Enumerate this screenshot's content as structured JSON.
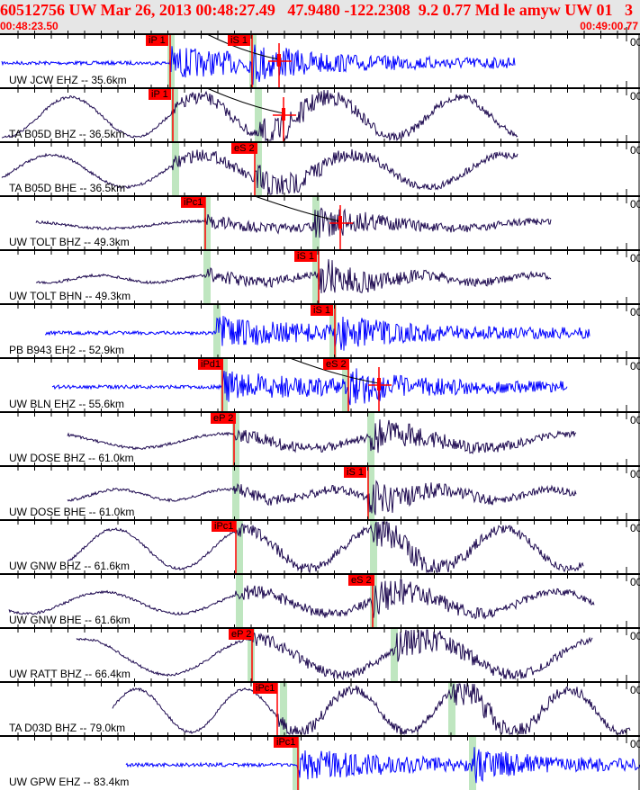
{
  "header": {
    "title": "60512756 UW Mar 26, 2013 00:48:27.49   47.9480 -122.2308  9.2 0.77 Md le amyw UW 01   3",
    "start_time": "00:48:23.50",
    "end_time": "00:49:00.77"
  },
  "scale_label": "00",
  "colors": {
    "header_bg": "#e6e6e6",
    "header_text": "#ff0000",
    "short_period": "#0000ff",
    "broadband": "#1e0a50",
    "pick": "#ff0000",
    "window": "#bfe6c0"
  },
  "channels": [
    {
      "label": "UW JCW EHZ -- 35.6km",
      "picks": [
        "iP 1",
        "iS 1"
      ]
    },
    {
      "label": "TA B05D BHZ -- 36.5km",
      "picks": [
        "iP 1"
      ]
    },
    {
      "label": "TA B05D BHE -- 36.5km",
      "picks": [
        "eS 2"
      ]
    },
    {
      "label": "UW TOLT BHZ -- 49.3km",
      "picks": [
        "iPc1"
      ]
    },
    {
      "label": "UW TOLT BHN -- 49.3km",
      "picks": [
        "iS 1"
      ]
    },
    {
      "label": "PB B943 EH2 -- 52.9km",
      "picks": [
        "iS 1"
      ]
    },
    {
      "label": "UW BLN EHZ -- 55.6km",
      "picks": [
        "iPd1",
        "eS 2"
      ]
    },
    {
      "label": "UW DOSE BHZ -- 61.0km",
      "picks": [
        "eP 2"
      ]
    },
    {
      "label": "UW DOSE BHE -- 61.0km",
      "picks": [
        "iS 1"
      ]
    },
    {
      "label": "UW GNW BHZ -- 61.6km",
      "picks": [
        "iPc1"
      ]
    },
    {
      "label": "UW GNW BHE -- 61.6km",
      "picks": [
        "eS 2"
      ]
    },
    {
      "label": "UW RATT BHZ -- 66.4km",
      "picks": [
        "eP 2"
      ]
    },
    {
      "label": "TA D03D BHZ -- 79.0km",
      "picks": [
        "iPc1"
      ]
    },
    {
      "label": "UW GPW EHZ -- 83.4km",
      "picks": [
        "iPc1"
      ]
    }
  ]
}
